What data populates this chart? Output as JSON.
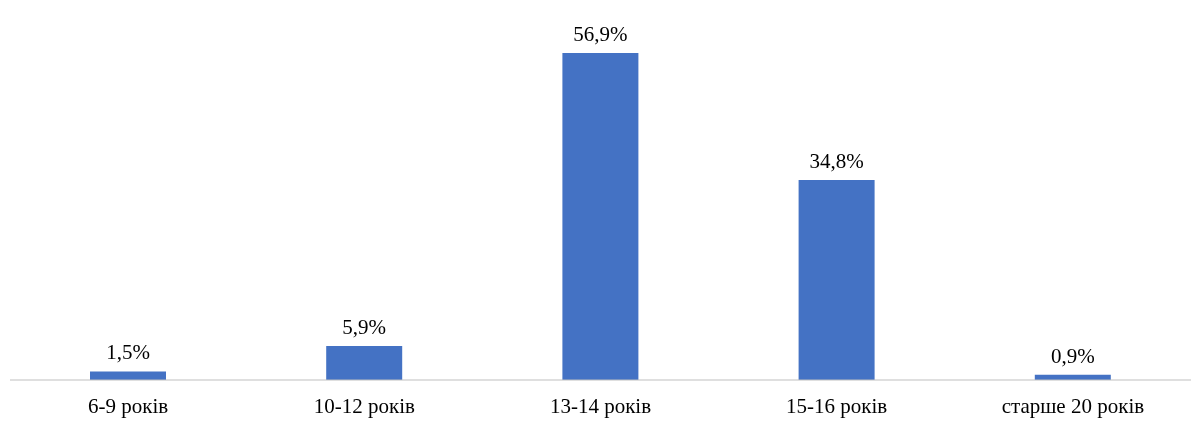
{
  "chart_data": {
    "type": "bar",
    "categories": [
      "6-9 років",
      "10-12 років",
      "13-14 років",
      "15-16 років",
      "старше 20 років"
    ],
    "values": [
      1.5,
      5.9,
      56.9,
      34.8,
      0.9
    ],
    "value_labels": [
      "1,5%",
      "5,9%",
      "56,9%",
      "34,8%",
      "0,9%"
    ],
    "color": "#4472c4",
    "grid": false,
    "legend": false
  }
}
